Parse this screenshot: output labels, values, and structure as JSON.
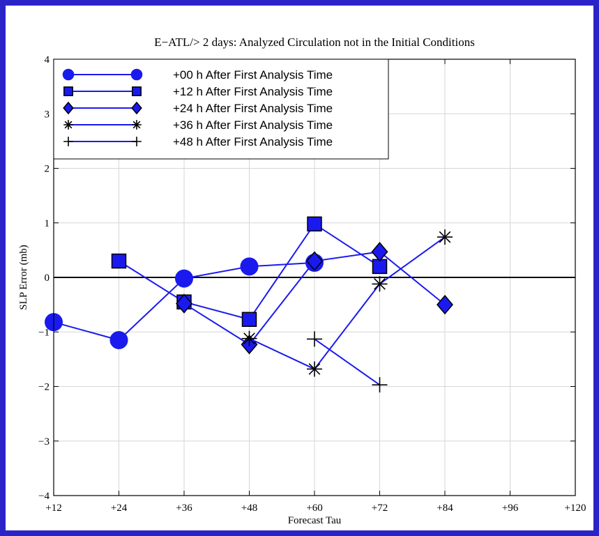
{
  "colors": {
    "frame": "#2a24c8",
    "series": "#1a1aee",
    "marker_fill": "#1a1aee",
    "marker_stroke": "#000000",
    "grid": "#d6d6d6",
    "axis": "#000000",
    "zero_line": "#000000"
  },
  "chart_data": {
    "type": "line",
    "title": "E−ATL/> 2 days: Analyzed Circulation not in the Initial Conditions",
    "xlabel": "Forecast Tau",
    "ylabel": "SLP Error (mb)",
    "xlim": [
      12,
      120
    ],
    "ylim": [
      -4,
      4
    ],
    "x_ticks": [
      12,
      24,
      36,
      48,
      60,
      72,
      84,
      96,
      120
    ],
    "x_tick_labels": [
      "+12",
      "+24",
      "+36",
      "+48",
      "+60",
      "+72",
      "+84",
      "+96",
      "+120"
    ],
    "x_tick_pos": [
      12,
      24,
      36,
      48,
      60,
      72,
      84,
      96,
      108
    ],
    "y_ticks": [
      -4,
      -3,
      -2,
      -1,
      0,
      1,
      2,
      3,
      4
    ],
    "y_tick_labels": [
      "−4",
      "−3",
      "−2",
      "−1",
      "0",
      "1",
      "2",
      "3",
      "4"
    ],
    "grid": true,
    "zero_line": true,
    "legend_position": "top-left",
    "series": [
      {
        "name": "+00 h After First Analysis Time",
        "marker": "circle",
        "x": [
          12,
          24,
          36,
          48,
          60
        ],
        "y": [
          -0.82,
          -1.15,
          -0.02,
          0.2,
          0.27
        ]
      },
      {
        "name": "+12 h After First Analysis Time",
        "marker": "square",
        "x": [
          24,
          36,
          48,
          60,
          72
        ],
        "y": [
          0.3,
          -0.45,
          -0.77,
          0.98,
          0.2
        ]
      },
      {
        "name": "+24 h After First Analysis Time",
        "marker": "diamond",
        "x": [
          36,
          48,
          60,
          72,
          84
        ],
        "y": [
          -0.48,
          -1.23,
          0.3,
          0.47,
          -0.5
        ]
      },
      {
        "name": "+36 h After First Analysis Time",
        "marker": "asterisk",
        "x": [
          48,
          60,
          72,
          84
        ],
        "y": [
          -1.12,
          -1.68,
          -0.12,
          0.74
        ]
      },
      {
        "name": "+48 h After First Analysis Time",
        "marker": "plus",
        "x": [
          60,
          72
        ],
        "y": [
          -1.13,
          -1.97
        ]
      }
    ]
  }
}
